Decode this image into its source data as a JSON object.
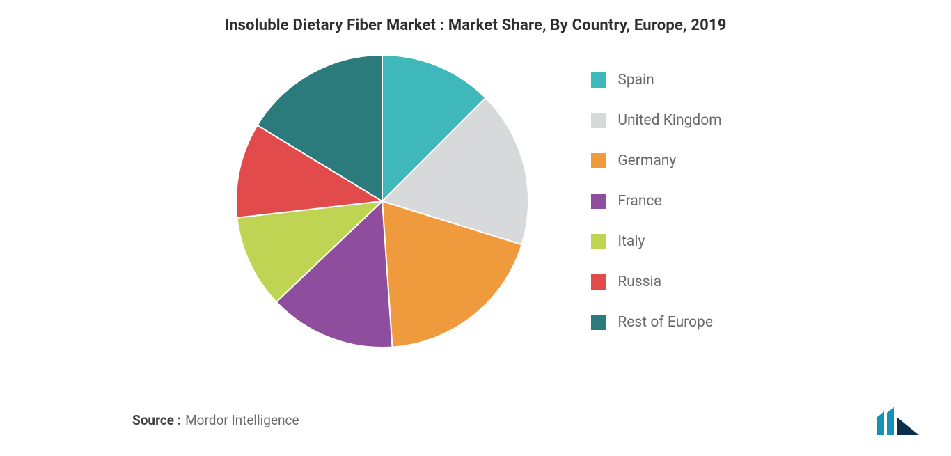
{
  "title": {
    "text": "Insoluble Dietary Fiber Market : Market Share, By Country, Europe, 2019",
    "fontsize": 22,
    "color": "#2e2e2e",
    "weight": 700
  },
  "chart": {
    "type": "pie",
    "background_color": "#ffffff",
    "radius": 210,
    "start_angle_deg": 0,
    "direction": "clockwise",
    "stroke": {
      "color": "#ffffff",
      "width": 2
    },
    "slices": [
      {
        "label": "Spain",
        "value": 12.5,
        "color": "#3fb8bb"
      },
      {
        "label": "United Kingdom",
        "value": 17.3,
        "color": "#d8d9da"
      },
      {
        "label": "Germany",
        "value": 19.1,
        "color": "#f09a3e"
      },
      {
        "label": "France",
        "value": 14.0,
        "color": "#8e4e9d"
      },
      {
        "label": "Italy",
        "value": 10.3,
        "color": "#c0d454"
      },
      {
        "label": "Russia",
        "value": 10.5,
        "color": "#e14b4b"
      },
      {
        "label": "Rest of Europe",
        "value": 16.3,
        "color": "#2b7b7d"
      }
    ]
  },
  "legend": {
    "fontsize": 21,
    "label_color": "#6a6a6a",
    "swatch_size": 22,
    "gap": 34,
    "items": [
      {
        "label": "Spain",
        "color": "#3fb8bb"
      },
      {
        "label": "United Kingdom",
        "color": "#d8d9da"
      },
      {
        "label": "Germany",
        "color": "#f09a3e"
      },
      {
        "label": "France",
        "color": "#8e4e9d"
      },
      {
        "label": "Italy",
        "color": "#c0d454"
      },
      {
        "label": "Russia",
        "color": "#e14b4b"
      },
      {
        "label": "Rest of Europe",
        "color": "#2b7b7d"
      }
    ]
  },
  "source": {
    "label": "Source :",
    "value": "Mordor Intelligence",
    "fontsize": 19
  },
  "logo": {
    "bar_color": "#1593b3",
    "triangle_color": "#0a2f4d"
  }
}
